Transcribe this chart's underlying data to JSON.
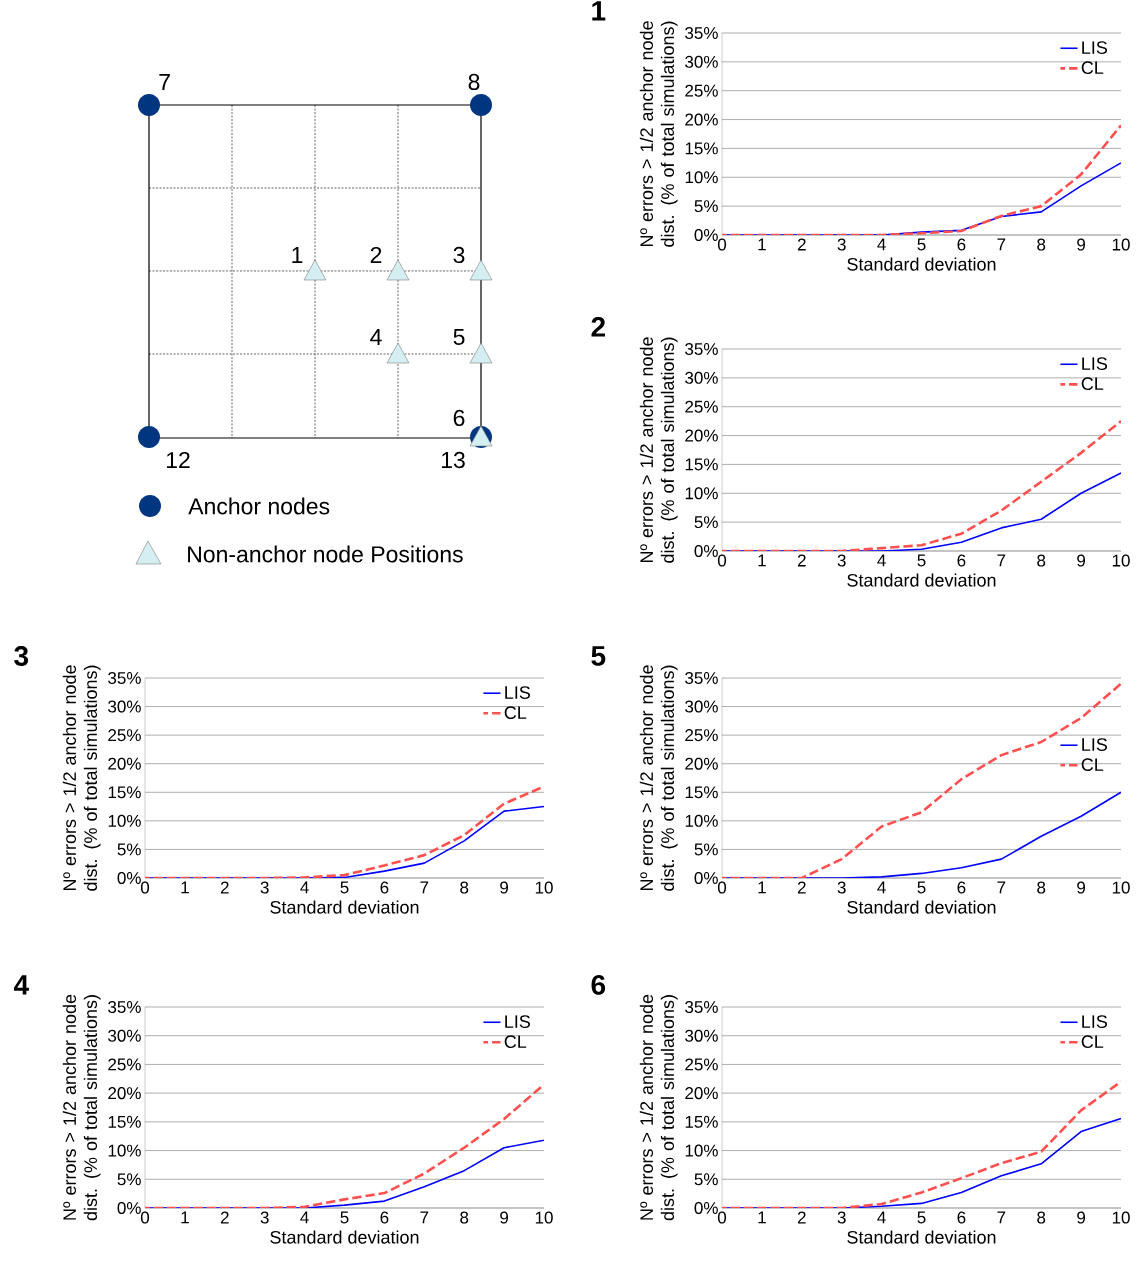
{
  "chart_data": [
    {
      "type": "other",
      "annotations": [
        "7",
        "8",
        "12",
        "13",
        "1",
        "2",
        "3",
        "4",
        "5",
        "6",
        "Anchor nodes",
        "Non-anchor node Positions"
      ]
    },
    {
      "type": "line",
      "title": "1",
      "xlabel": "Standard deviation",
      "ylabel": "Nº errors > 1/2 anchor node dist. (% of total simulations)",
      "grid": "y",
      "legend": "top right",
      "x": [
        0,
        1,
        2,
        3,
        4,
        5,
        6,
        7,
        8,
        9,
        10
      ],
      "xlim": [
        0,
        10
      ],
      "xticks": [
        0,
        1,
        2,
        3,
        4,
        5,
        6,
        7,
        8,
        9,
        10
      ],
      "ylim": [
        0,
        35
      ],
      "yticks": [
        {
          "value": 0,
          "label": "0%"
        },
        {
          "value": 5,
          "label": "5%"
        },
        {
          "value": 10,
          "label": "10%"
        },
        {
          "value": 15,
          "label": "15%"
        },
        {
          "value": 20,
          "label": "20%"
        },
        {
          "value": 25,
          "label": "25%"
        },
        {
          "value": 30,
          "label": "30%"
        },
        {
          "value": 35,
          "label": "35%"
        }
      ],
      "series": [
        {
          "name": "LIS",
          "color": "#0000ff",
          "line_style": "solid",
          "values": [
            0,
            0,
            0,
            0,
            0,
            0.5,
            0.8,
            3.2,
            4,
            8.5,
            12.5
          ]
        },
        {
          "name": "CL",
          "color": "#ff5050",
          "line_style": "dashed",
          "values": [
            0,
            0,
            0,
            0,
            0,
            0.3,
            0.7,
            3.3,
            5,
            10.5,
            19
          ]
        }
      ]
    },
    {
      "type": "line",
      "title": "2",
      "xlabel": "Standard deviation",
      "ylabel": "Nº errors > 1/2 anchor node dist. (% of total simulations)",
      "grid": "y",
      "legend": "top right",
      "x": [
        0,
        1,
        2,
        3,
        4,
        5,
        6,
        7,
        8,
        9,
        10
      ],
      "xlim": [
        0,
        10
      ],
      "xticks": [
        0,
        1,
        2,
        3,
        4,
        5,
        6,
        7,
        8,
        9,
        10
      ],
      "ylim": [
        0,
        35
      ],
      "yticks": [
        {
          "value": 0,
          "label": "0%"
        },
        {
          "value": 5,
          "label": "5%"
        },
        {
          "value": 10,
          "label": "10%"
        },
        {
          "value": 15,
          "label": "15%"
        },
        {
          "value": 20,
          "label": "20%"
        },
        {
          "value": 25,
          "label": "25%"
        },
        {
          "value": 30,
          "label": "30%"
        },
        {
          "value": 35,
          "label": "35%"
        }
      ],
      "series": [
        {
          "name": "LIS",
          "color": "#0000ff",
          "line_style": "solid",
          "values": [
            0,
            0,
            0,
            0,
            0,
            0.3,
            1.5,
            4,
            5.5,
            10,
            13.5
          ]
        },
        {
          "name": "CL",
          "color": "#ff5050",
          "line_style": "dashed",
          "values": [
            0,
            0,
            0,
            0,
            0.5,
            1,
            3,
            7,
            12,
            17,
            22.5
          ]
        }
      ]
    },
    {
      "type": "line",
      "title": "3",
      "xlabel": "Standard deviation",
      "ylabel": "Nº errors > 1/2 anchor node dist. (% of total simulations)",
      "grid": "y",
      "legend": "top right",
      "x": [
        0,
        1,
        2,
        3,
        4,
        5,
        6,
        7,
        8,
        9,
        10
      ],
      "xlim": [
        0,
        10
      ],
      "xticks": [
        0,
        1,
        2,
        3,
        4,
        5,
        6,
        7,
        8,
        9,
        10
      ],
      "ylim": [
        0,
        35
      ],
      "yticks": [
        {
          "value": 0,
          "label": "0%"
        },
        {
          "value": 5,
          "label": "5%"
        },
        {
          "value": 10,
          "label": "10%"
        },
        {
          "value": 15,
          "label": "15%"
        },
        {
          "value": 20,
          "label": "20%"
        },
        {
          "value": 25,
          "label": "25%"
        },
        {
          "value": 30,
          "label": "30%"
        },
        {
          "value": 35,
          "label": "35%"
        }
      ],
      "series": [
        {
          "name": "LIS",
          "color": "#0000ff",
          "line_style": "solid",
          "values": [
            0,
            0,
            0,
            0,
            0,
            0.1,
            1.2,
            2.6,
            6.5,
            11.7,
            12.5
          ]
        },
        {
          "name": "CL",
          "color": "#ff5050",
          "line_style": "dashed",
          "values": [
            0,
            0,
            0,
            0,
            0.1,
            0.5,
            2.2,
            4,
            7.5,
            13,
            16
          ]
        }
      ]
    },
    {
      "type": "line",
      "title": "5",
      "xlabel": "Standard deviation",
      "ylabel": "Nº errors > 1/2 anchor node dist. (% of total simulations)",
      "grid": "y",
      "legend": "right",
      "x": [
        0,
        1,
        2,
        3,
        4,
        5,
        6,
        7,
        8,
        9,
        10
      ],
      "xlim": [
        0,
        10
      ],
      "xticks": [
        0,
        1,
        2,
        3,
        4,
        5,
        6,
        7,
        8,
        9,
        10
      ],
      "ylim": [
        0,
        35
      ],
      "yticks": [
        {
          "value": 0,
          "label": "0%"
        },
        {
          "value": 5,
          "label": "5%"
        },
        {
          "value": 10,
          "label": "10%"
        },
        {
          "value": 15,
          "label": "15%"
        },
        {
          "value": 20,
          "label": "20%"
        },
        {
          "value": 25,
          "label": "25%"
        },
        {
          "value": 30,
          "label": "30%"
        },
        {
          "value": 35,
          "label": "35%"
        }
      ],
      "series": [
        {
          "name": "LIS",
          "color": "#0000ff",
          "line_style": "solid",
          "values": [
            0,
            0,
            0,
            0,
            0.2,
            0.8,
            1.8,
            3.3,
            7.3,
            10.8,
            15
          ]
        },
        {
          "name": "CL",
          "color": "#ff5050",
          "line_style": "dashed",
          "values": [
            0,
            0,
            0,
            3.3,
            9,
            11.5,
            17.3,
            21.5,
            23.8,
            28,
            34
          ]
        }
      ]
    },
    {
      "type": "line",
      "title": "4",
      "xlabel": "Standard deviation",
      "ylabel": "Nº errors > 1/2 anchor node dist. (% of total simulations)",
      "grid": "y",
      "legend": "top right",
      "x": [
        0,
        1,
        2,
        3,
        4,
        5,
        6,
        7,
        8,
        9,
        10
      ],
      "xlim": [
        0,
        10
      ],
      "xticks": [
        0,
        1,
        2,
        3,
        4,
        5,
        6,
        7,
        8,
        9,
        10
      ],
      "ylim": [
        0,
        35
      ],
      "yticks": [
        {
          "value": 0,
          "label": "0%"
        },
        {
          "value": 5,
          "label": "5%"
        },
        {
          "value": 10,
          "label": "10%"
        },
        {
          "value": 15,
          "label": "15%"
        },
        {
          "value": 20,
          "label": "20%"
        },
        {
          "value": 25,
          "label": "25%"
        },
        {
          "value": 30,
          "label": "30%"
        },
        {
          "value": 35,
          "label": "35%"
        }
      ],
      "series": [
        {
          "name": "LIS",
          "color": "#0000ff",
          "line_style": "solid",
          "values": [
            0,
            0,
            0,
            0,
            0,
            0.5,
            1.2,
            3.7,
            6.5,
            10.5,
            11.8
          ]
        },
        {
          "name": "CL",
          "color": "#ff5050",
          "line_style": "dashed",
          "values": [
            0,
            0,
            0,
            0,
            0.2,
            1.5,
            2.6,
            6,
            10.5,
            15.5,
            21.5
          ]
        }
      ]
    },
    {
      "type": "line",
      "title": "6",
      "xlabel": "Standard deviation",
      "ylabel": "Nº errors > 1/2 anchor node dist. (% of total simulations)",
      "grid": "y",
      "legend": "top right",
      "x": [
        0,
        1,
        2,
        3,
        4,
        5,
        6,
        7,
        8,
        9,
        10
      ],
      "xlim": [
        0,
        10
      ],
      "xticks": [
        0,
        1,
        2,
        3,
        4,
        5,
        6,
        7,
        8,
        9,
        10
      ],
      "ylim": [
        0,
        35
      ],
      "yticks": [
        {
          "value": 0,
          "label": "0%"
        },
        {
          "value": 5,
          "label": "5%"
        },
        {
          "value": 10,
          "label": "10%"
        },
        {
          "value": 15,
          "label": "15%"
        },
        {
          "value": 20,
          "label": "20%"
        },
        {
          "value": 25,
          "label": "25%"
        },
        {
          "value": 30,
          "label": "30%"
        },
        {
          "value": 35,
          "label": "35%"
        }
      ],
      "series": [
        {
          "name": "LIS",
          "color": "#0000ff",
          "line_style": "solid",
          "values": [
            0,
            0,
            0,
            0,
            0.3,
            0.8,
            2.7,
            5.6,
            7.7,
            13.3,
            15.6
          ]
        },
        {
          "name": "CL",
          "color": "#ff5050",
          "line_style": "dashed",
          "values": [
            0,
            0,
            0,
            0,
            0.7,
            2.7,
            5.2,
            7.8,
            9.8,
            17,
            22
          ]
        }
      ]
    }
  ]
}
